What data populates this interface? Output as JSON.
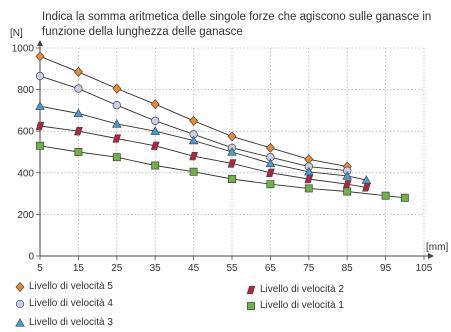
{
  "chart_data": {
    "type": "line",
    "title": "Indica la somma aritmetica delle singole forze che agiscono sulle ganasce in funzione della lunghezza delle ganasce",
    "ylabel": "[N]",
    "xlabel": "[mm]",
    "xlim": [
      5,
      105
    ],
    "ylim": [
      0,
      1000
    ],
    "xticks": [
      5,
      15,
      25,
      35,
      45,
      55,
      65,
      75,
      85,
      95,
      105
    ],
    "yticks": [
      0,
      200,
      400,
      600,
      800,
      1000
    ],
    "grid": true,
    "legend_position": "bottom",
    "series": [
      {
        "name": "Livello di velocità 5",
        "marker": "diamond",
        "color": "#ee8a2a",
        "x": [
          5,
          15,
          25,
          35,
          45,
          55,
          65,
          75,
          85
        ],
        "y": [
          960,
          885,
          805,
          730,
          650,
          575,
          520,
          465,
          430
        ]
      },
      {
        "name": "Livello di velocità 4",
        "marker": "circle",
        "color": "#c8cfe6",
        "x": [
          5,
          15,
          25,
          35,
          45,
          55,
          65,
          75,
          85
        ],
        "y": [
          865,
          805,
          725,
          650,
          585,
          520,
          475,
          430,
          410
        ]
      },
      {
        "name": "Livello di velocità 3",
        "marker": "triangle",
        "color": "#3fa0d8",
        "x": [
          5,
          15,
          25,
          35,
          45,
          55,
          65,
          75,
          85,
          90
        ],
        "y": [
          720,
          685,
          635,
          600,
          555,
          500,
          445,
          405,
          385,
          365
        ]
      },
      {
        "name": "Livello di velocità 2",
        "marker": "parallelogram",
        "color": "#b52340",
        "x": [
          5,
          15,
          25,
          35,
          45,
          55,
          65,
          75,
          85,
          90
        ],
        "y": [
          625,
          600,
          565,
          530,
          480,
          445,
          400,
          370,
          345,
          330
        ]
      },
      {
        "name": "Livello di velocità 1",
        "marker": "square",
        "color": "#6cb33f",
        "x": [
          5,
          15,
          25,
          35,
          45,
          55,
          65,
          75,
          85,
          95,
          100
        ],
        "y": [
          530,
          500,
          475,
          435,
          405,
          370,
          345,
          325,
          310,
          290,
          280
        ]
      }
    ],
    "legend_order": [
      0,
      3,
      1,
      4,
      2
    ]
  }
}
